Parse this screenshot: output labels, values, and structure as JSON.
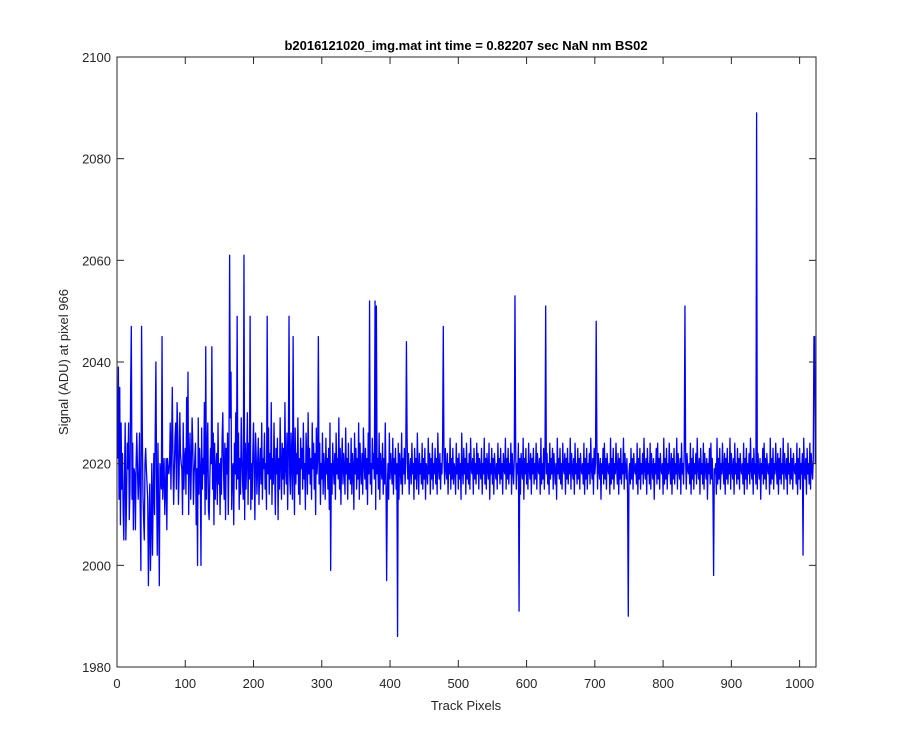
{
  "chart_data": {
    "type": "line",
    "title": "b2016121020_img.mat int time = 0.82207 sec  NaN nm BS02",
    "xlabel": "Track Pixels",
    "ylabel": "Signal (ADU) at pixel 966",
    "xlim": [
      0,
      1024
    ],
    "ylim": [
      1980,
      2100
    ],
    "x_ticks": [
      "0",
      "100",
      "200",
      "300",
      "400",
      "500",
      "600",
      "700",
      "800",
      "900",
      "1000"
    ],
    "y_ticks": [
      "1980",
      "2000",
      "2020",
      "2040",
      "2060",
      "2080",
      "2100"
    ],
    "grid": false,
    "box": true,
    "legend": "none",
    "line_color": "#0000ff",
    "series": [
      {
        "x_start": 1,
        "x_step": 1,
        "values": [
          2021,
          2039,
          2013,
          2035,
          2008,
          2028,
          2015,
          2022,
          2011,
          2005,
          2018,
          2028,
          2005,
          2013,
          2024,
          2019,
          2028,
          2009,
          2015,
          2035,
          2047,
          2013,
          2024,
          2007,
          2019,
          2018,
          2007,
          2020,
          2026,
          2019,
          2013,
          2017,
          2026,
          2011,
          1999,
          2016,
          2028,
          2014,
          2009,
          2005,
          2020,
          2023,
          2019,
          2016,
          2013,
          1996,
          2008,
          2016,
          2045,
          2008,
          2020,
          2002,
          2014,
          2022,
          2010,
          2026,
          2040,
          2016,
          2002,
          2024,
          2011,
          2008,
          2020,
          2017,
          2015,
          2022,
          2013,
          2017,
          2021,
          2010,
          2015,
          2021,
          2007,
          2021,
          2019,
          2018,
          2020,
          2028,
          2015,
          2024,
          2035,
          2021,
          2012,
          2019,
          2025,
          2028,
          2015,
          2032,
          2026,
          2012,
          2018,
          2030,
          2022,
          2020,
          2019,
          2010,
          2028,
          2015,
          2021,
          2023,
          2014,
          2033,
          2018,
          2038,
          2010,
          2021,
          2026,
          2013,
          2020,
          2029,
          2024,
          2012,
          2018,
          2021,
          2024,
          2008,
          2019,
          2017,
          2029,
          2014,
          2023,
          2019,
          2000,
          2027,
          2015,
          2021,
          2018,
          2032,
          2010,
          2025,
          2013,
          2022,
          2028,
          2011,
          2009,
          2017,
          2023,
          2020,
          2043,
          2015,
          2026,
          2008,
          2024,
          2013,
          2019,
          2022,
          2012,
          2028,
          2016,
          2020,
          2010,
          2021,
          2014,
          2025,
          2030,
          2019,
          2013,
          2024,
          2009,
          2023,
          2018,
          2026,
          2010,
          2021,
          2013,
          2029,
          2038,
          2011,
          2019,
          2020,
          2008,
          2024,
          2018,
          2030,
          2015,
          2022,
          2017,
          2026,
          2011,
          2021,
          2014,
          2029,
          2021,
          2016,
          2013,
          2061,
          2009,
          2024,
          2015,
          2021,
          2030,
          2012,
          2024,
          2017,
          2049,
          2011,
          2020,
          2013,
          2022,
          2028,
          2018,
          2009,
          2026,
          2021,
          2014,
          2020,
          2025,
          2012,
          2019,
          2023,
          2016,
          2028,
          2013,
          2021,
          2019,
          2026,
          2015,
          2020,
          2011,
          2024,
          2018,
          2027,
          2014,
          2022,
          2017,
          2032,
          2012,
          2021,
          2016,
          2028,
          2019,
          2010,
          2023,
          2018,
          2025,
          2009,
          2021,
          2015,
          2029,
          2020,
          2013,
          2024,
          2017,
          2023,
          2014,
          2032,
          2019,
          2016,
          2026,
          2011,
          2022,
          2049,
          2018,
          2014,
          2026,
          2020,
          2013,
          2024,
          2019,
          2010,
          2027,
          2016,
          2022,
          2018,
          2029,
          2014,
          2021,
          2012,
          2025,
          2019,
          2023,
          2015,
          2028,
          2017,
          2020,
          2011,
          2026,
          2021,
          2014,
          2030,
          2018,
          2023,
          2016,
          2021,
          2013,
          2028,
          2019,
          2024,
          2015,
          2022,
          2010,
          2027,
          2018,
          2021,
          2045,
          2016,
          2024,
          2012,
          2020,
          2017,
          2026,
          2014,
          2022,
          2019,
          2013,
          2025,
          2018,
          2021,
          2015,
          2023,
          2011,
          2028,
          2017,
          2020,
          2014,
          2024,
          2019,
          2016,
          2022,
          2013,
          2026,
          2018,
          2021,
          2017,
          2029,
          2015,
          2023,
          2012,
          2020,
          2025,
          2016,
          2022,
          2019,
          2014,
          2027,
          2018,
          2021,
          2013,
          2024,
          2017,
          2020,
          2016,
          2025,
          2014,
          2022,
          2019,
          2011,
          2026,
          2018,
          2023,
          2015,
          2021,
          2017,
          2028,
          2013,
          2024,
          2019,
          2016,
          2022,
          2014,
          2027,
          2020,
          2017,
          2023,
          2015,
          2021,
          2012,
          2026,
          2018,
          2024,
          2016,
          2020,
          2014,
          2025,
          2019,
          2022,
          2017,
          2052,
          2011,
          2024,
          2018,
          2021,
          2015,
          2026,
          2013,
          2022,
          2019,
          2017,
          2024,
          2014,
          2021,
          2016,
          2028,
          2018,
          2023,
          2015,
          2020,
          2013,
          2026,
          2017,
          2022,
          2019,
          2016,
          2025,
          2014,
          2021,
          2018,
          2023,
          2015,
          2020,
          2017,
          2024,
          2013,
          2022,
          2019,
          2016,
          2026,
          2014,
          2021,
          2018,
          2023,
          2016,
          2020,
          2015,
          2025,
          2017,
          2022,
          2014,
          2019,
          2021,
          2016,
          2024,
          2018,
          2020,
          2013,
          2023,
          2017,
          2021,
          2015,
          2026,
          2019,
          2014,
          2022,
          2018,
          2020,
          2016,
          2024,
          2015,
          2021,
          2017,
          2023,
          2013,
          2020,
          2019,
          2016,
          2025,
          2018,
          2022,
          2014,
          2021,
          2017,
          2024,
          2015,
          2020,
          2018,
          2023,
          2016,
          2021,
          2014,
          2026,
          2019,
          2017,
          2022,
          2015,
          2020,
          2018,
          2024,
          2013,
          2021,
          2016,
          2023,
          2019,
          2017,
          2022,
          2014,
          2020,
          2018,
          2025,
          2015,
          2021,
          2017,
          2023,
          2016,
          2020,
          2019,
          2014,
          2024,
          2018,
          2021,
          2015,
          2022,
          2017,
          2020,
          2013,
          2026,
          2019,
          2016,
          2023,
          2018,
          2021,
          2014,
          2024,
          2017,
          2020,
          2016,
          2022,
          2015,
          2025,
          2019,
          2018,
          2021,
          2014,
          2023,
          2017,
          2020,
          2016,
          2024,
          2018,
          2022,
          2015,
          2021,
          2019,
          2017,
          2023,
          2014,
          2020,
          2018,
          2025,
          2016,
          2021,
          2015,
          2022,
          2019,
          2017,
          2024,
          2013,
          2020,
          2018,
          2023,
          2016,
          2021,
          2014,
          2022,
          2019,
          2017,
          2020,
          2015,
          2024,
          2018,
          2021,
          2016,
          2023,
          2017,
          2020,
          2014,
          2022,
          2019,
          2018,
          2025,
          2015,
          2021,
          2017,
          2023,
          2016,
          2020,
          2018,
          2024,
          2014,
          2022,
          2019,
          2016,
          2021,
          2017,
          2023,
          2015,
          2020,
          2018,
          2024,
          2016,
          2021,
          2014,
          2022,
          2019,
          2017,
          2025,
          2013,
          2021,
          2018,
          2023,
          2016,
          2020,
          2015,
          2024,
          2019,
          2017,
          2022,
          2014,
          2021,
          2018,
          2023,
          2016,
          2020,
          2017,
          2024,
          2015,
          2022,
          2019,
          2018,
          2021,
          2014,
          2025,
          2016,
          2020,
          2017,
          2023,
          2015,
          2021,
          2019,
          2018,
          2022,
          2016,
          2020,
          2014,
          2024,
          2017,
          2021,
          2018,
          2023,
          2015,
          2022,
          2019,
          2016,
          2020,
          2013,
          2025,
          2018,
          2021,
          2017,
          2023,
          2016,
          2020,
          2015,
          2024,
          2019,
          2018,
          2022,
          2014,
          2021,
          2017,
          2023,
          2016,
          2020,
          2018,
          2025,
          2015,
          2022,
          2019,
          2017,
          2021,
          2014,
          2024,
          2018,
          2020,
          2016,
          2023,
          2017,
          2021,
          2015,
          2022,
          2019,
          2018,
          2020,
          2016,
          2024,
          2014,
          2021,
          2017,
          2023,
          2015,
          2020,
          2018,
          2022,
          2016,
          2025,
          2019,
          2017,
          2021,
          2014,
          2023,
          2018,
          2020,
          2016,
          2024,
          2015,
          2022,
          2019,
          2017,
          2021,
          2013,
          2020,
          2018,
          2023,
          2016,
          2024,
          2017,
          2021,
          2015,
          2022,
          2019,
          2018,
          2020,
          2014,
          2025,
          2016,
          2021,
          2017,
          2023,
          2015,
          2020,
          2018,
          2024,
          2019,
          2016,
          2022,
          2014,
          2021,
          2017,
          2023,
          2016,
          2020,
          2018,
          2025,
          2015,
          2022,
          2019,
          2017,
          2021,
          2014,
          2024,
          2018,
          2020,
          2016,
          2023,
          2017,
          2021,
          2015,
          2022,
          2019,
          2018,
          2020,
          2016,
          2024,
          2014,
          2021,
          2017,
          2023,
          2015,
          2020,
          2018,
          2022,
          2016,
          2025,
          2019,
          2017,
          2021,
          2014,
          2023,
          2018,
          2020,
          2016,
          2024,
          2015,
          2022,
          2019,
          2017,
          2021,
          2013,
          2020,
          2018,
          2023,
          2016,
          2024,
          2017,
          2021,
          2015,
          2022,
          2019,
          2018,
          2020,
          2014,
          2025,
          2016,
          2021,
          2017,
          2023,
          2015,
          2020,
          2018,
          2024,
          2019,
          2016,
          2022,
          2014,
          2021,
          2017,
          2023,
          2016,
          2020,
          2018,
          2025,
          2015,
          2022,
          2019,
          2017,
          2021,
          2014,
          2024,
          2018,
          2020,
          2016,
          2023,
          2017,
          2021,
          2015,
          2022,
          2019,
          2018,
          2020,
          2016,
          2024,
          2014,
          2021,
          2017,
          2023,
          2015,
          2020,
          2018,
          2022,
          2016,
          2025,
          2019,
          2017,
          2021,
          2014,
          2023,
          2018,
          2020,
          2016,
          2024,
          2015,
          2022,
          2019,
          2017,
          2021,
          2013,
          2020,
          2018,
          2023,
          2016,
          2024,
          2017,
          2021,
          2015,
          2022,
          2019,
          2018,
          2020,
          2014,
          2025,
          2016,
          2021,
          2017,
          2023,
          2015,
          2020,
          2018,
          2024,
          2019,
          2016,
          2022,
          2014,
          2021,
          2017,
          2023,
          2016,
          2020,
          2018,
          2025,
          2015,
          2022,
          2019,
          2017,
          2021,
          2014,
          2024,
          2018,
          2020,
          2016,
          2023,
          2017,
          2021,
          2015,
          2022,
          2019,
          2018,
          2020,
          2016,
          2024,
          2014,
          2021,
          2017,
          2023,
          2015,
          2020,
          2018,
          2022,
          2016,
          2025,
          2019,
          2017,
          2021,
          2014,
          2023,
          2018,
          2020,
          2016,
          2024,
          2015,
          2022,
          2019,
          2017,
          2021,
          2013,
          2020,
          2018,
          2023,
          2016,
          2024,
          2017,
          2021,
          2015,
          2022,
          2019,
          2018,
          2020,
          2014,
          2025,
          2016,
          2021,
          2017,
          2023,
          2015,
          2020,
          2018,
          2024,
          2019,
          2016,
          2022,
          2014,
          2021,
          2017,
          2023,
          2016,
          2020,
          2018,
          2025,
          2015,
          2022,
          2019,
          2017,
          2021,
          2014,
          2024,
          2018,
          2020,
          2016,
          2023,
          2017,
          2021,
          2015,
          2022,
          2019,
          2018,
          2020,
          2016,
          2024,
          2014,
          2021,
          2017,
          2023,
          2015,
          2020,
          2018,
          2022,
          2016,
          2025,
          2019,
          2017,
          2021,
          2014,
          2023,
          2018,
          2020,
          2016,
          2024,
          2015,
          2022,
          2019,
          2017,
          2021,
          2033,
          2045,
          2020
        ]
      }
    ],
    "highlights": [
      {
        "x": 20,
        "y": 2035
      },
      {
        "x": 36,
        "y": 2047
      },
      {
        "x": 49,
        "y": 1999
      },
      {
        "x": 62,
        "y": 1996
      },
      {
        "x": 66,
        "y": 2045
      },
      {
        "x": 118,
        "y": 2000
      },
      {
        "x": 130,
        "y": 2043
      },
      {
        "x": 165,
        "y": 2061
      },
      {
        "x": 176,
        "y": 2049
      },
      {
        "x": 220,
        "y": 2049
      },
      {
        "x": 258,
        "y": 2045
      },
      {
        "x": 313,
        "y": 1999
      },
      {
        "x": 370,
        "y": 2052
      },
      {
        "x": 380,
        "y": 2051
      },
      {
        "x": 395,
        "y": 1997
      },
      {
        "x": 411,
        "y": 1986
      },
      {
        "x": 424,
        "y": 2044
      },
      {
        "x": 478,
        "y": 2047
      },
      {
        "x": 583,
        "y": 2053
      },
      {
        "x": 589,
        "y": 1991
      },
      {
        "x": 628,
        "y": 2051
      },
      {
        "x": 702,
        "y": 2048
      },
      {
        "x": 749,
        "y": 1990
      },
      {
        "x": 832,
        "y": 2051
      },
      {
        "x": 874,
        "y": 1998
      },
      {
        "x": 937,
        "y": 2089
      },
      {
        "x": 1005,
        "y": 2002
      },
      {
        "x": 1021,
        "y": 2045
      }
    ]
  }
}
